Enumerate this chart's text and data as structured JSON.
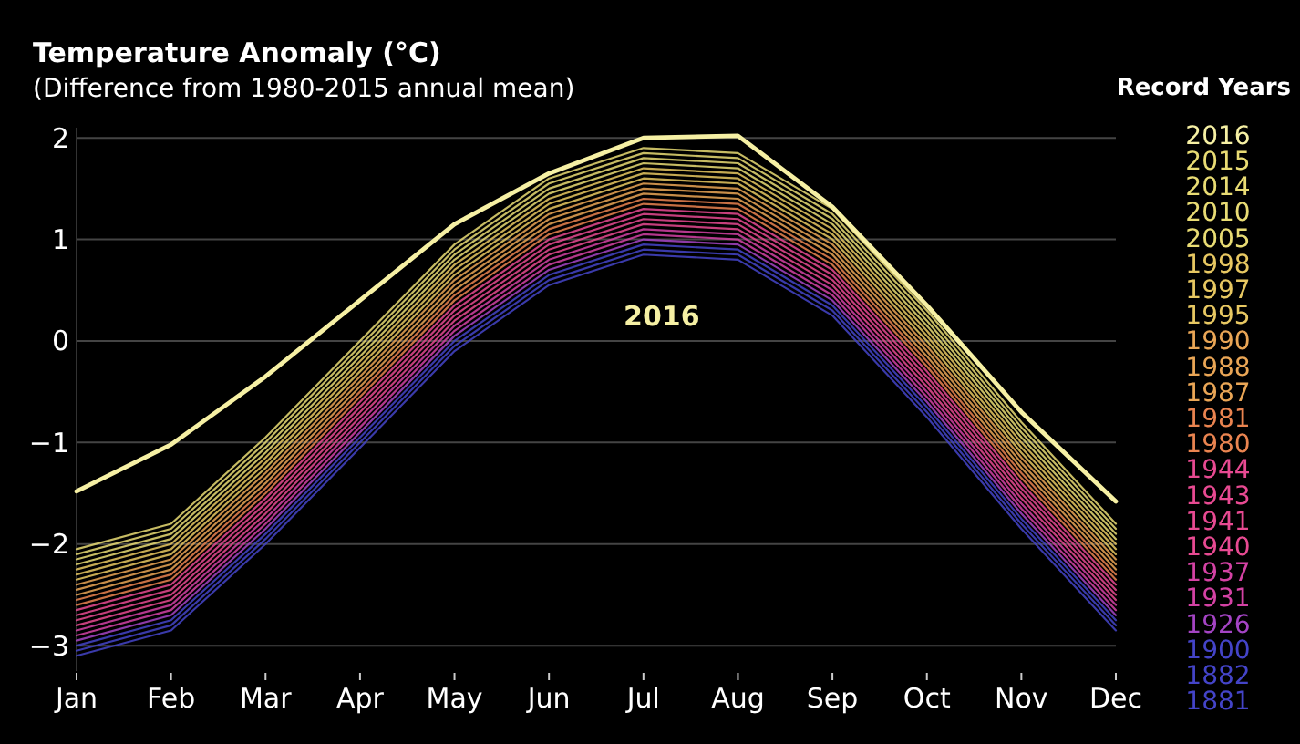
{
  "chart_data": {
    "type": "line",
    "title": "Temperature Anomaly (°C)",
    "subtitle": "(Difference from 1980-2015 annual mean)",
    "legend_title": "Record Years",
    "legend": "right",
    "grid": "y",
    "marker": "none",
    "line_style": "solid",
    "categories": [
      "Jan",
      "Feb",
      "Mar",
      "Apr",
      "May",
      "Jun",
      "Jul",
      "Aug",
      "Sep",
      "Oct",
      "Nov",
      "Dec"
    ],
    "ylim": [
      -3.25,
      2.1
    ],
    "yticks": [
      -3,
      -2,
      -1,
      0,
      1,
      2
    ],
    "annotations": [
      "2016"
    ],
    "series": [
      {
        "name": "2016",
        "color": "#f6f0a4",
        "values": [
          -1.48,
          -1.02,
          -0.35,
          0.4,
          1.15,
          1.65,
          2.0,
          2.02,
          1.32,
          0.35,
          -0.7,
          -1.58
        ]
      },
      {
        "name": "2015",
        "color": "#e9dc74",
        "values": [
          -2.05,
          -1.8,
          -0.95,
          0,
          0.95,
          1.6,
          1.9,
          1.85,
          1.3,
          0.3,
          -0.8,
          -1.8
        ]
      },
      {
        "name": "2014",
        "color": "#e9dc74",
        "values": [
          -2.1,
          -1.85,
          -1,
          -0.05,
          0.9,
          1.55,
          1.85,
          1.8,
          1.25,
          0.25,
          -0.85,
          -1.85
        ]
      },
      {
        "name": "2010",
        "color": "#e9dc74",
        "values": [
          -2.15,
          -1.9,
          -1.05,
          -0.1,
          0.85,
          1.5,
          1.8,
          1.75,
          1.2,
          0.2,
          -0.9,
          -1.9
        ]
      },
      {
        "name": "2005",
        "color": "#e9dc74",
        "values": [
          -2.2,
          -1.95,
          -1.1,
          -0.15,
          0.8,
          1.45,
          1.75,
          1.7,
          1.15,
          0.15,
          -0.95,
          -1.95
        ]
      },
      {
        "name": "1998",
        "color": "#e8c862",
        "values": [
          -2.25,
          -2,
          -1.15,
          -0.2,
          0.75,
          1.4,
          1.7,
          1.65,
          1.1,
          0.1,
          -1,
          -2
        ]
      },
      {
        "name": "1997",
        "color": "#e8c862",
        "values": [
          -2.3,
          -2.05,
          -1.2,
          -0.25,
          0.7,
          1.35,
          1.65,
          1.6,
          1.05,
          0.05,
          -1.05,
          -2.05
        ]
      },
      {
        "name": "1995",
        "color": "#e8c862",
        "values": [
          -2.35,
          -2.1,
          -1.25,
          -0.3,
          0.65,
          1.3,
          1.6,
          1.55,
          1,
          0,
          -1.1,
          -2.1
        ]
      },
      {
        "name": "1990",
        "color": "#eaa656",
        "values": [
          -2.4,
          -2.15,
          -1.3,
          -0.35,
          0.6,
          1.25,
          1.55,
          1.5,
          0.95,
          -0.05,
          -1.15,
          -2.15
        ]
      },
      {
        "name": "1988",
        "color": "#eaa656",
        "values": [
          -2.45,
          -2.2,
          -1.35,
          -0.4,
          0.55,
          1.2,
          1.5,
          1.45,
          0.9,
          -0.1,
          -1.2,
          -2.2
        ]
      },
      {
        "name": "1987",
        "color": "#eaa656",
        "values": [
          -2.5,
          -2.25,
          -1.4,
          -0.45,
          0.5,
          1.15,
          1.45,
          1.4,
          0.85,
          -0.15,
          -1.25,
          -2.25
        ]
      },
      {
        "name": "1981",
        "color": "#ea8450",
        "values": [
          -2.55,
          -2.3,
          -1.45,
          -0.5,
          0.45,
          1.1,
          1.4,
          1.35,
          0.8,
          -0.2,
          -1.3,
          -2.3
        ]
      },
      {
        "name": "1980",
        "color": "#ea8450",
        "values": [
          -2.6,
          -2.35,
          -1.5,
          -0.55,
          0.4,
          1.05,
          1.35,
          1.3,
          0.75,
          -0.25,
          -1.35,
          -2.35
        ]
      },
      {
        "name": "1944",
        "color": "#e84a92",
        "values": [
          -2.65,
          -2.4,
          -1.55,
          -0.6,
          0.35,
          1,
          1.3,
          1.25,
          0.7,
          -0.3,
          -1.4,
          -2.4
        ]
      },
      {
        "name": "1943",
        "color": "#e84a92",
        "values": [
          -2.7,
          -2.45,
          -1.6,
          -0.65,
          0.3,
          0.95,
          1.25,
          1.2,
          0.65,
          -0.35,
          -1.45,
          -2.45
        ]
      },
      {
        "name": "1941",
        "color": "#e84a92",
        "values": [
          -2.75,
          -2.5,
          -1.65,
          -0.7,
          0.25,
          0.9,
          1.2,
          1.15,
          0.6,
          -0.4,
          -1.5,
          -2.5
        ]
      },
      {
        "name": "1940",
        "color": "#e84a92",
        "values": [
          -2.8,
          -2.55,
          -1.7,
          -0.75,
          0.2,
          0.85,
          1.15,
          1.1,
          0.55,
          -0.45,
          -1.55,
          -2.55
        ]
      },
      {
        "name": "1937",
        "color": "#d442a4",
        "values": [
          -2.85,
          -2.6,
          -1.75,
          -0.8,
          0.15,
          0.8,
          1.1,
          1.05,
          0.5,
          -0.5,
          -1.6,
          -2.6
        ]
      },
      {
        "name": "1931",
        "color": "#d442a4",
        "values": [
          -2.9,
          -2.65,
          -1.8,
          -0.85,
          0.1,
          0.75,
          1.05,
          1,
          0.45,
          -0.55,
          -1.65,
          -2.65
        ]
      },
      {
        "name": "1926",
        "color": "#a444c4",
        "values": [
          -2.95,
          -2.7,
          -1.85,
          -0.9,
          0.05,
          0.7,
          1,
          0.95,
          0.4,
          -0.6,
          -1.7,
          -2.7
        ]
      },
      {
        "name": "1900",
        "color": "#4444c8",
        "values": [
          -3,
          -2.75,
          -1.9,
          -0.95,
          0,
          0.65,
          0.95,
          0.9,
          0.35,
          -0.65,
          -1.75,
          -2.75
        ]
      },
      {
        "name": "1882",
        "color": "#4444c8",
        "values": [
          -3.05,
          -2.8,
          -1.95,
          -1,
          -0.05,
          0.6,
          0.9,
          0.85,
          0.3,
          -0.7,
          -1.8,
          -2.8
        ]
      },
      {
        "name": "1881",
        "color": "#4444c8",
        "values": [
          -3.1,
          -2.85,
          -2,
          -1.05,
          -0.1,
          0.55,
          0.85,
          0.8,
          0.25,
          -0.75,
          -1.85,
          -2.85
        ]
      }
    ]
  }
}
